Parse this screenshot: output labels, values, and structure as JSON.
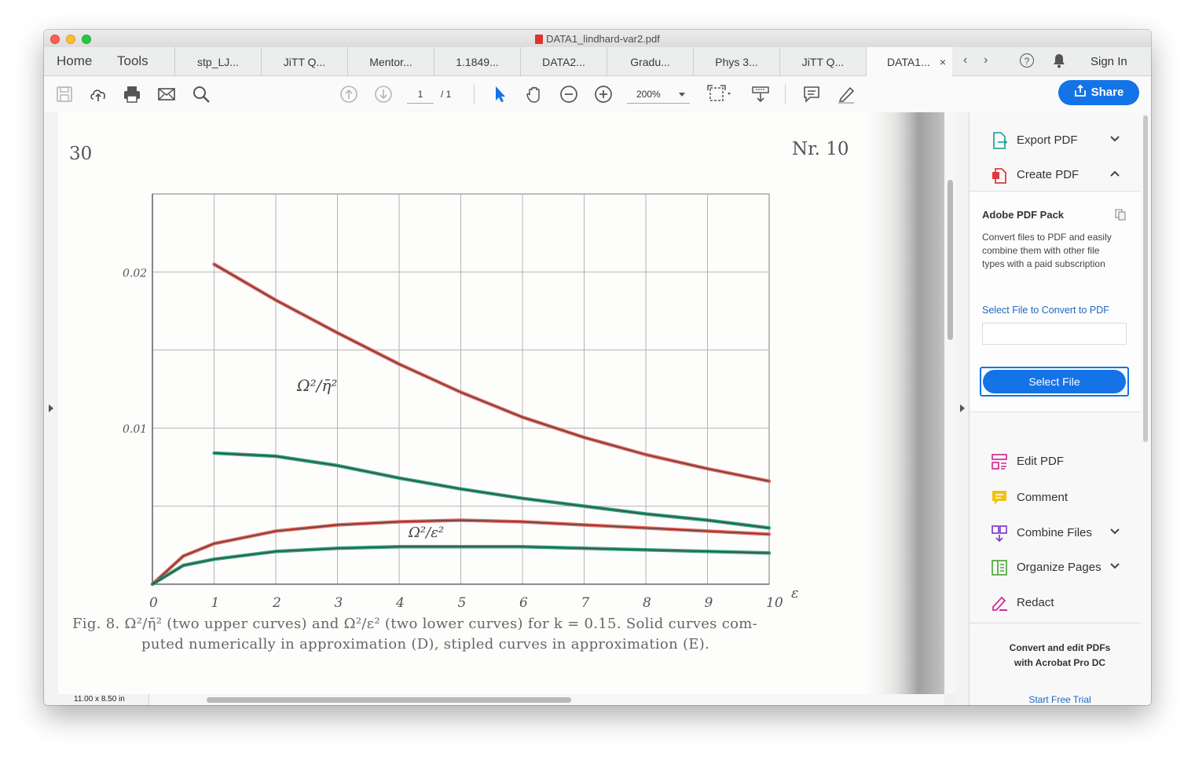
{
  "window": {
    "title": "DATA1_lindhard-var2.pdf"
  },
  "tabs": {
    "home": "Home",
    "tools": "Tools",
    "documents": [
      "stp_LJ...",
      "JiTT Q...",
      "Mentor...",
      "1.1849...",
      "DATA2...",
      "Gradu...",
      "Phys 3...",
      "JiTT Q...",
      "DATA1..."
    ],
    "active_close": "×",
    "prev": "‹",
    "next": "›",
    "help": "?",
    "sign_in": "Sign In"
  },
  "toolbar": {
    "page_current": "1",
    "page_total": "/ 1",
    "zoom": "200%",
    "share": "Share"
  },
  "document": {
    "page_number": "30",
    "issue": "Nr. 10",
    "y_tick_labels": [
      "0.02",
      "0.01"
    ],
    "x_tick_labels": [
      "0",
      "1",
      "2",
      "3",
      "4",
      "5",
      "6",
      "7",
      "8",
      "9",
      "10"
    ],
    "x_axis_label": "ε",
    "upper_curve_label": "Ω²/η̄²",
    "lower_curve_label": "Ω²/ε²",
    "caption_line1": "Fig. 8.  Ω²/η̄² (two upper curves) and Ω²/ε² (two lower curves) for k = 0.15. Solid curves com-",
    "caption_line2": "puted numerically in approximation (D), stipled curves in approximation (E).",
    "page_size": "11.00 x 8.50 in"
  },
  "chart_data": {
    "type": "line",
    "xlabel": "ε",
    "ylabel": "",
    "xlim": [
      0,
      10
    ],
    "ylim": [
      0,
      0.025
    ],
    "x": [
      0,
      1,
      2,
      3,
      4,
      5,
      6,
      7,
      8,
      9,
      10
    ],
    "y_ticks_labeled": [
      0.01,
      0.02
    ],
    "series": [
      {
        "name": "Ω²/η̄²",
        "color": "#e8564b",
        "x": [
          1,
          2,
          3,
          4,
          5,
          6,
          7,
          8,
          9,
          10
        ],
        "values": [
          0.0205,
          0.0182,
          0.0161,
          0.0141,
          0.0123,
          0.0107,
          0.0094,
          0.0083,
          0.0074,
          0.0066
        ]
      },
      {
        "color": "#1a9a70",
        "x": [
          1,
          2,
          3,
          4,
          5,
          6,
          7,
          8,
          9,
          10
        ],
        "values": [
          0.0084,
          0.0082,
          0.0076,
          0.0068,
          0.0061,
          0.0055,
          0.005,
          0.0045,
          0.0041,
          0.0036
        ]
      },
      {
        "name": "Ω²/ε²",
        "color": "#e8564b",
        "x": [
          0,
          0.5,
          1,
          2,
          3,
          4,
          5,
          6,
          7,
          8,
          9,
          10
        ],
        "values": [
          0,
          0.0018,
          0.0026,
          0.0034,
          0.0038,
          0.004,
          0.0041,
          0.004,
          0.0038,
          0.0036,
          0.0034,
          0.0032
        ]
      },
      {
        "color": "#1a9a70",
        "x": [
          0,
          0.5,
          1,
          2,
          3,
          4,
          5,
          6,
          7,
          8,
          9,
          10
        ],
        "values": [
          0,
          0.0012,
          0.0016,
          0.0021,
          0.0023,
          0.0024,
          0.0024,
          0.0024,
          0.0023,
          0.0022,
          0.0021,
          0.002
        ]
      }
    ],
    "grid": true
  },
  "side_panel": {
    "export_pdf": "Export PDF",
    "create_pdf": "Create PDF",
    "pack_title": "Adobe PDF Pack",
    "pack_desc": "Convert files to PDF and easily combine them with other file types with a paid subscription",
    "select_label": "Select File to Convert to PDF",
    "select_button": "Select File",
    "tools": [
      "Edit PDF",
      "Comment",
      "Combine Files",
      "Organize Pages",
      "Redact"
    ],
    "promo_line1": "Convert and edit PDFs",
    "promo_line2": "with Acrobat Pro DC",
    "trial": "Start Free Trial"
  },
  "colors": {
    "accent": "#1473e6",
    "link": "#1e66c2",
    "red_curve": "#e8564b",
    "green_curve": "#1a9a70"
  },
  "icons": {
    "toolbar": [
      "save-icon",
      "upload-icon",
      "print-icon",
      "mail-icon",
      "search-icon",
      "page-up-icon",
      "page-down-icon",
      "select-cursor-icon",
      "hand-icon",
      "zoom-out-icon",
      "zoom-in-icon",
      "fit-page-icon",
      "scroll-mode-icon",
      "comment-icon",
      "highlight-icon"
    ]
  }
}
